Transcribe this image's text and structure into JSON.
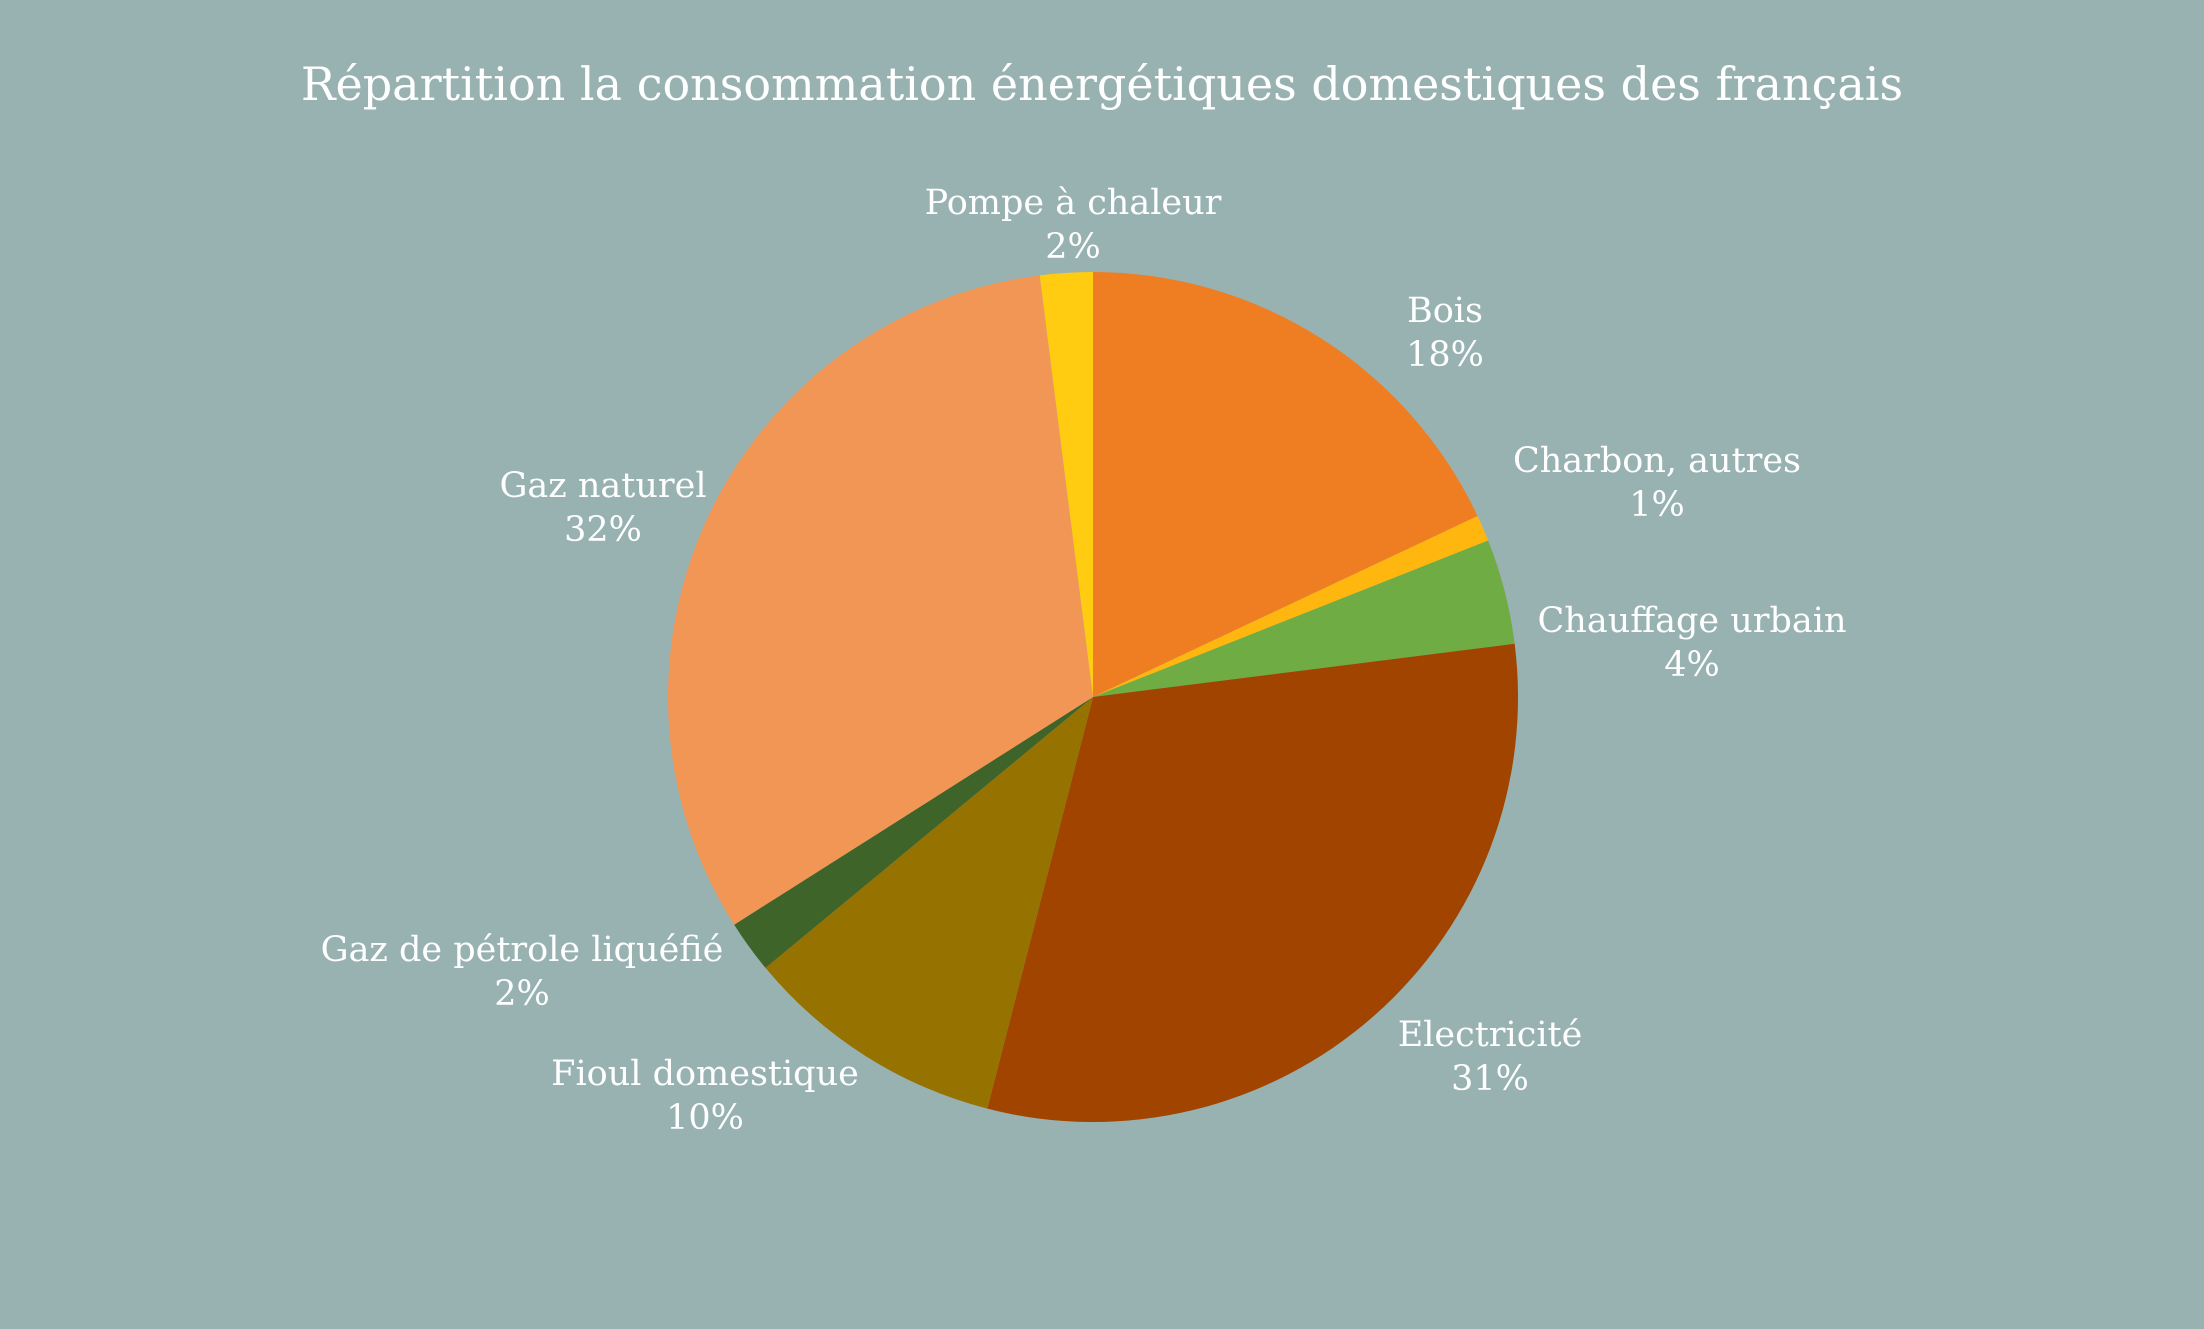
{
  "chart_data": {
    "type": "pie",
    "title": "Répartition la consommation énergétiques domestiques des français",
    "slices": [
      {
        "label": "Bois",
        "value": 18,
        "value_label": "18%",
        "color": "#ef7d22"
      },
      {
        "label": "Charbon, autres",
        "value": 1,
        "value_label": "1%",
        "color": "#ffb70f"
      },
      {
        "label": "Chauffage urbain",
        "value": 4,
        "value_label": "4%",
        "color": "#6fac44"
      },
      {
        "label": "Electricité",
        "value": 31,
        "value_label": "31%",
        "color": "#a04400"
      },
      {
        "label": "Fioul domestique",
        "value": 10,
        "value_label": "10%",
        "color": "#967200"
      },
      {
        "label": "Gaz de pétrole liquéfié",
        "value": 2,
        "value_label": "2%",
        "color": "#3e642a"
      },
      {
        "label": "Gaz naturel",
        "value": 32,
        "value_label": "32%",
        "color": "#f29656"
      },
      {
        "label": "Pompe à chaleur",
        "value": 2,
        "value_label": "2%",
        "color": "#ffcc11"
      }
    ],
    "start_angle": "12 o'clock",
    "direction": "clockwise",
    "legend": "none",
    "data_labels": "outside"
  }
}
